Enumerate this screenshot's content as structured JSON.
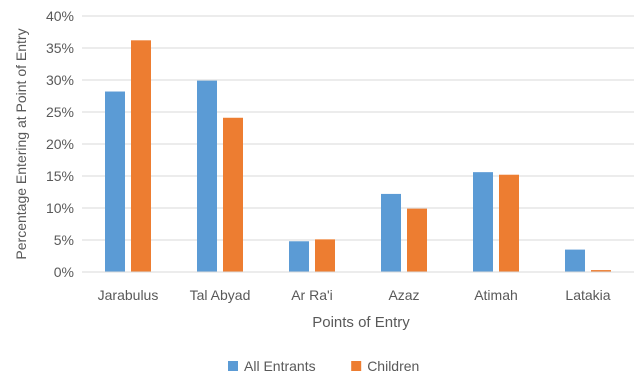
{
  "chart_data": {
    "type": "bar",
    "categories": [
      "Jarabulus",
      "Tal Abyad",
      "Ar Ra'i",
      "Azaz",
      "Atimah",
      "Latakia"
    ],
    "series": [
      {
        "name": "All Entrants",
        "values": [
          28.2,
          29.9,
          4.8,
          12.2,
          15.6,
          3.5
        ]
      },
      {
        "name": "Children",
        "values": [
          36.2,
          24.1,
          5.1,
          9.9,
          15.2,
          0.3
        ]
      }
    ],
    "xlabel": "Points of Entry",
    "ylabel": "Percentage Entering at Point of Entry",
    "ylim": [
      0,
      40
    ],
    "yticks": [
      "0%",
      "5%",
      "10%",
      "15%",
      "20%",
      "25%",
      "30%",
      "35%",
      "40%"
    ],
    "ytick_values": [
      0,
      5,
      10,
      15,
      20,
      25,
      30,
      35,
      40
    ],
    "grid": true,
    "legend_position": "bottom",
    "colors": {
      "All Entrants": "#5B9BD5",
      "Children": "#ED7D31",
      "grid": "#D9D9D9",
      "text": "#595959"
    }
  }
}
